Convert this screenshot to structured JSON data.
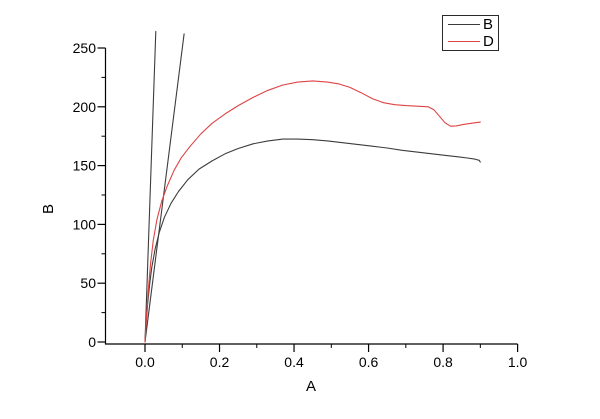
{
  "figure": {
    "background": "#ffffff",
    "axis_color": "#000000",
    "series_black": "#3c3c3c",
    "series_red": "#dd4444"
  },
  "axes": {
    "x": {
      "title": "A",
      "major": [
        {
          "v": 0.0,
          "label": "0.0"
        },
        {
          "v": 0.2,
          "label": "0.2"
        },
        {
          "v": 0.4,
          "label": "0.4"
        },
        {
          "v": 0.6,
          "label": "0.6"
        },
        {
          "v": 0.8,
          "label": "0.8"
        },
        {
          "v": 1.0,
          "label": "1.0"
        }
      ],
      "minor": [
        0.1,
        0.3,
        0.5,
        0.7,
        0.9
      ]
    },
    "y": {
      "title": "B",
      "major": [
        {
          "v": 0,
          "label": "0"
        },
        {
          "v": 50,
          "label": "50"
        },
        {
          "v": 100,
          "label": "100"
        },
        {
          "v": 150,
          "label": "150"
        },
        {
          "v": 200,
          "label": "200"
        },
        {
          "v": 250,
          "label": "250"
        }
      ],
      "minor": [
        25,
        75,
        125,
        175,
        225
      ]
    }
  },
  "legend": {
    "entries": [
      {
        "label": "B",
        "color": "#3c3c3c"
      },
      {
        "label": "D",
        "color": "#dd4444"
      }
    ]
  },
  "chart_data": {
    "type": "line",
    "title": "",
    "xlabel": "A",
    "ylabel": "B",
    "xlim": [
      -0.11,
      1.0
    ],
    "ylim": [
      -2,
      250
    ],
    "grid": false,
    "legend_position": "top-right",
    "x_major_ticks": [
      0.0,
      0.2,
      0.4,
      0.6,
      0.8,
      1.0
    ],
    "y_major_ticks": [
      0,
      50,
      100,
      150,
      200,
      250
    ],
    "series": [
      {
        "name": "B-steep-segment-1",
        "color": "#3c3c3c",
        "in_legend": false,
        "x": [
          0,
          0.029
        ],
        "y": [
          0,
          264
        ]
      },
      {
        "name": "B-steep-segment-2",
        "color": "#3c3c3c",
        "in_legend": false,
        "x": [
          0,
          0.105
        ],
        "y": [
          0,
          262
        ]
      },
      {
        "name": "B",
        "color": "#3c3c3c",
        "in_legend": true,
        "x": [
          0,
          0.003,
          0.007,
          0.012,
          0.018,
          0.027,
          0.038,
          0.052,
          0.07,
          0.09,
          0.115,
          0.145,
          0.18,
          0.215,
          0.25,
          0.29,
          0.33,
          0.37,
          0.41,
          0.45,
          0.49,
          0.53,
          0.57,
          0.61,
          0.65,
          0.69,
          0.73,
          0.77,
          0.81,
          0.84,
          0.865,
          0.885,
          0.897,
          0.9
        ],
        "y": [
          0,
          15,
          32,
          48,
          63,
          79,
          93,
          106,
          118,
          128,
          138,
          147,
          154,
          160,
          164.5,
          168.5,
          171,
          172.5,
          172.5,
          172,
          171,
          169.5,
          168,
          166.5,
          165,
          163,
          161.5,
          160,
          158.5,
          157.5,
          156.5,
          155.5,
          154.5,
          153
        ]
      },
      {
        "name": "D",
        "color": "#dd4444",
        "in_legend": true,
        "x": [
          0,
          0.004,
          0.009,
          0.015,
          0.022,
          0.032,
          0.045,
          0.06,
          0.078,
          0.098,
          0.12,
          0.15,
          0.18,
          0.215,
          0.25,
          0.29,
          0.33,
          0.37,
          0.41,
          0.45,
          0.49,
          0.52,
          0.55,
          0.58,
          0.61,
          0.64,
          0.67,
          0.7,
          0.73,
          0.76,
          0.775,
          0.79,
          0.805,
          0.82,
          0.835,
          0.855,
          0.875,
          0.9
        ],
        "y": [
          0,
          22,
          45,
          67,
          86,
          104,
          120,
          133,
          146,
          157,
          166,
          177,
          186,
          194,
          201,
          208,
          214,
          218.5,
          221,
          222,
          221,
          219.5,
          216.5,
          212,
          207,
          203.5,
          201.8,
          201,
          200.5,
          200,
          197.5,
          192,
          186.5,
          183.5,
          183.8,
          185,
          186,
          187
        ]
      }
    ]
  }
}
